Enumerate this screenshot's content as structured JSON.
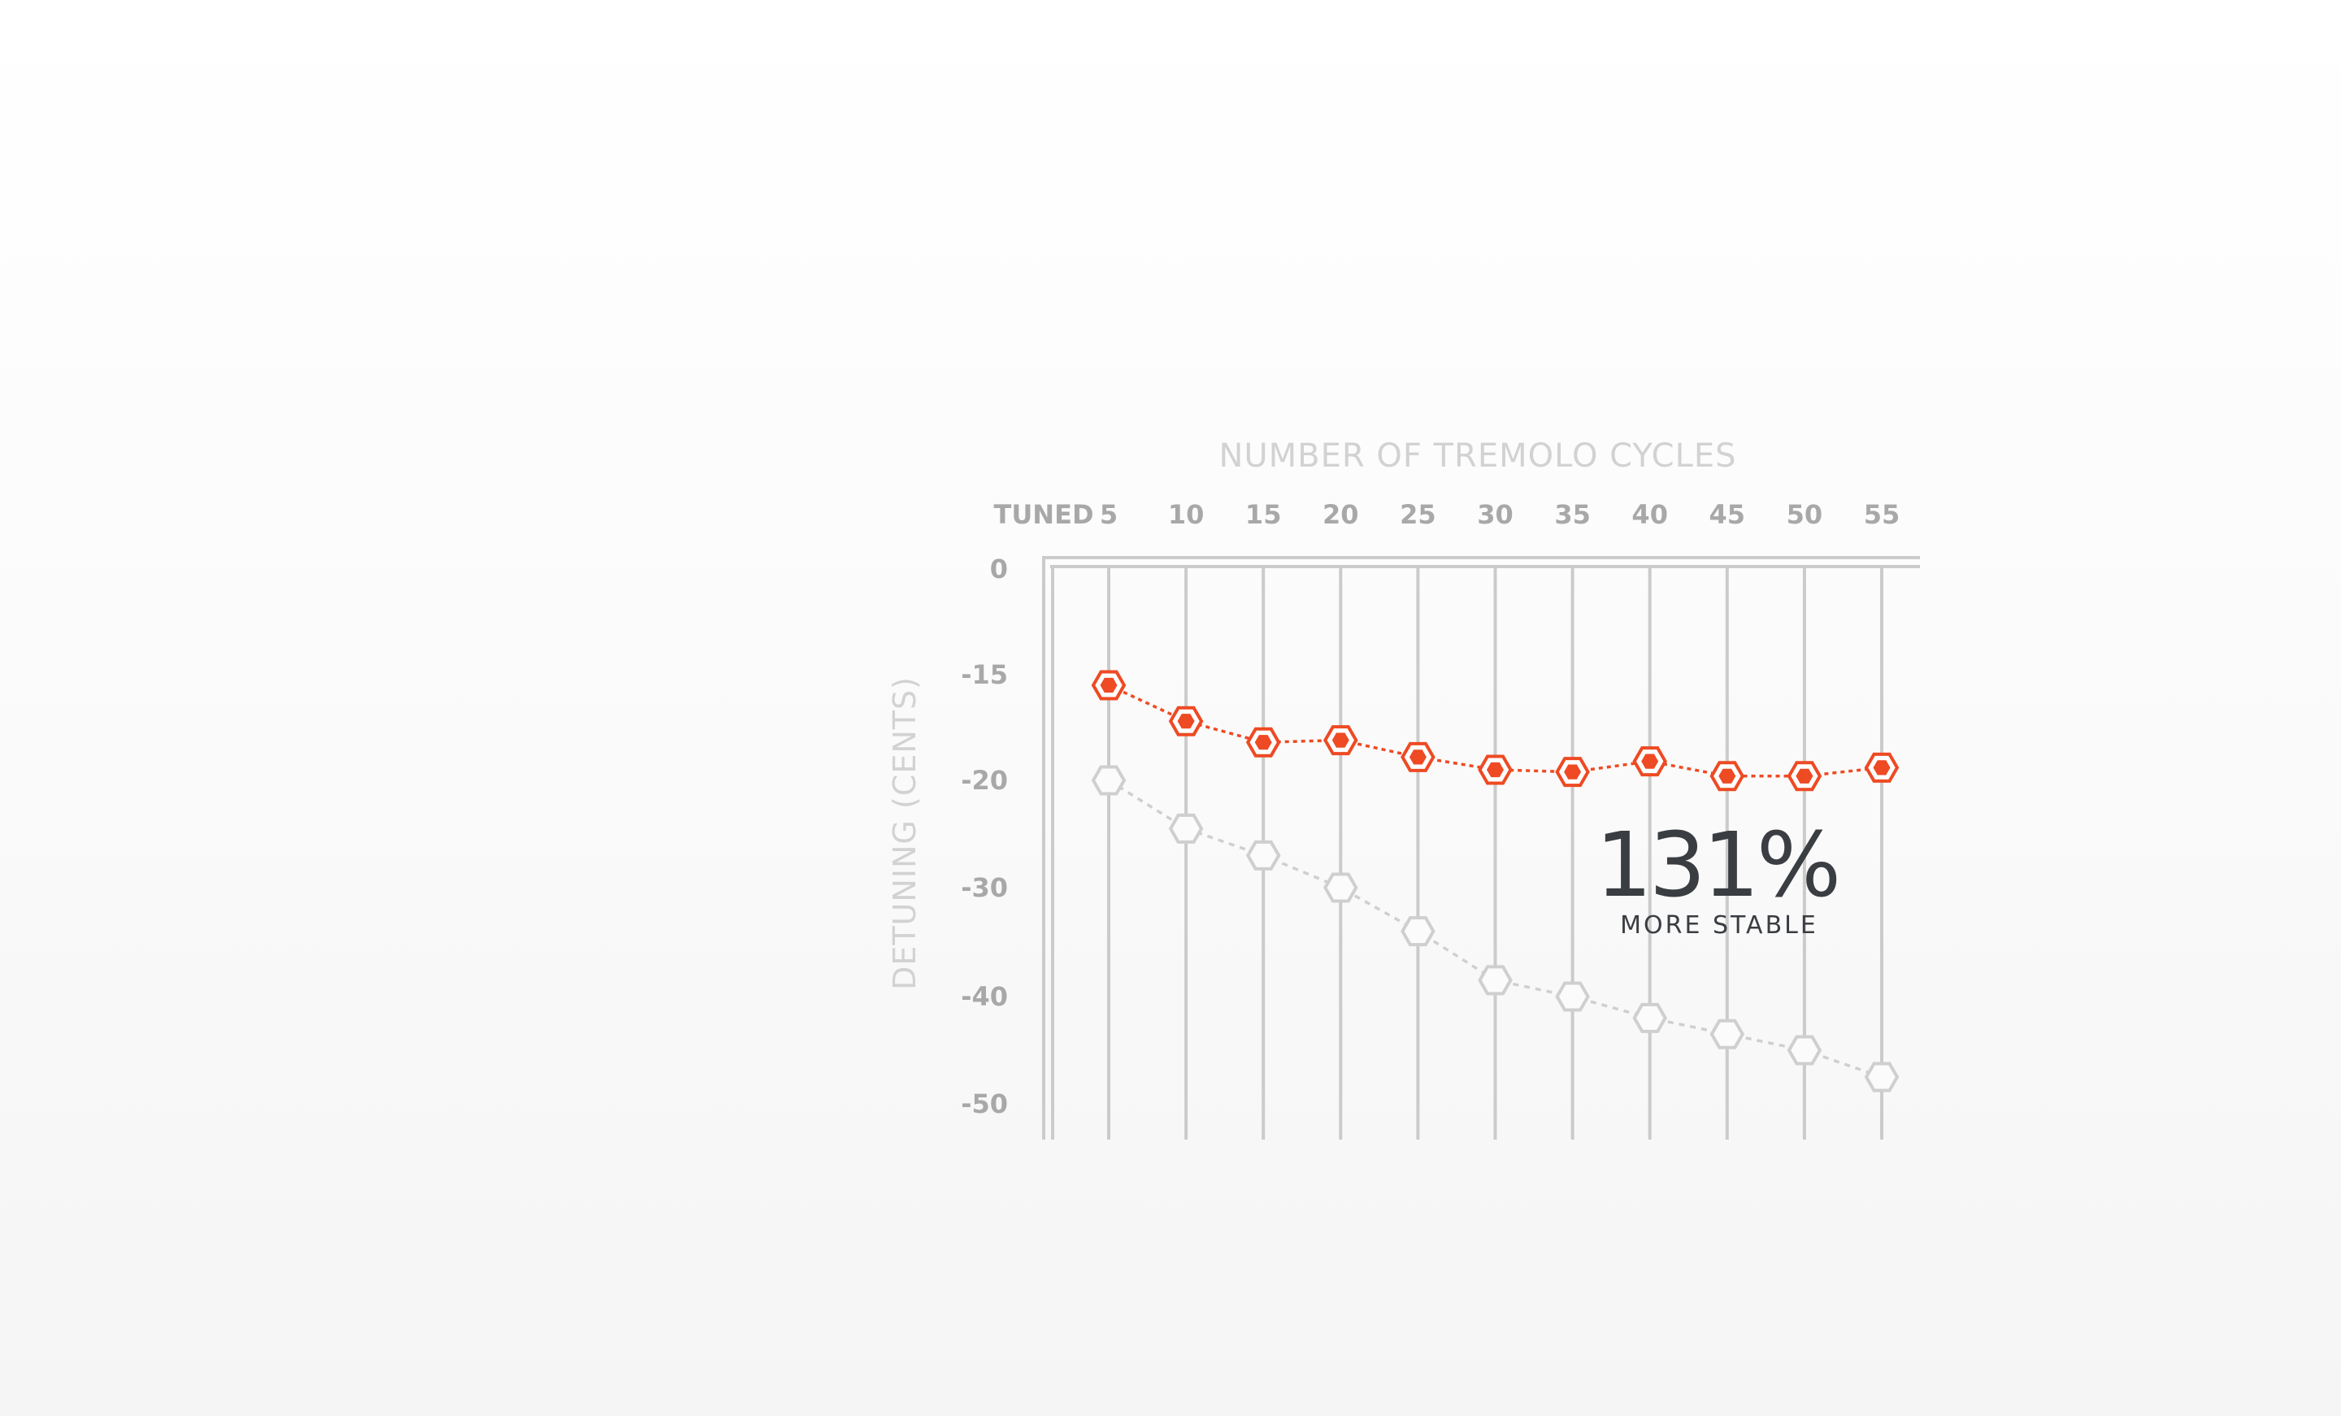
{
  "chart_data": {
    "type": "line",
    "xlabel": "NUMBER OF TREMOLO CYCLES",
    "ylabel": "DETUNING (CENTS)",
    "x_tick_labels": [
      "TUNED",
      "5",
      "10",
      "15",
      "20",
      "25",
      "30",
      "35",
      "40",
      "45",
      "50",
      "55"
    ],
    "y_tick_labels": [
      "0",
      "-15",
      "-20",
      "-30",
      "-40",
      "-50"
    ],
    "x": [
      5,
      10,
      15,
      20,
      25,
      30,
      35,
      40,
      45,
      50,
      55
    ],
    "ylim": [
      0,
      -50
    ],
    "axis_position": "top",
    "grid": "vertical",
    "series": [
      {
        "color": "#ee4a23",
        "style": "filled-hexagon",
        "values": [
          -15.5,
          -17.2,
          -18.2,
          -18.1,
          -18.9,
          -19.5,
          -19.6,
          -19.1,
          -19.8,
          -19.8,
          -19.4
        ]
      },
      {
        "color": "#cfcfcf",
        "style": "hollow-hexagon",
        "values": [
          -20.0,
          -24.5,
          -27.0,
          -30.0,
          -34.0,
          -38.5,
          -40.0,
          -42.0,
          -43.5,
          -45.0,
          -47.5
        ]
      }
    ],
    "annotation": {
      "value": "131%",
      "caption": "MORE STABLE"
    }
  }
}
